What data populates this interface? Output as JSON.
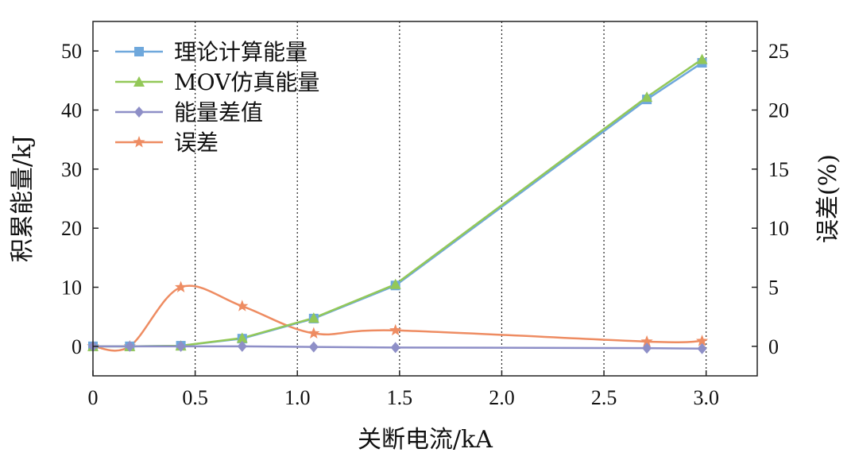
{
  "chart_data": {
    "type": "line",
    "xlabel": "关断电流/kA",
    "ylabel": "积累能量/kJ",
    "y2label": "误差(%)",
    "xlim": [
      0,
      3.25
    ],
    "ylim": [
      -5,
      55
    ],
    "y2lim": [
      -2.5,
      27.5
    ],
    "x_ticks": [
      0,
      0.5,
      1.0,
      1.5,
      2.0,
      2.5,
      3.0
    ],
    "x_tick_labels": [
      "0",
      "0.5",
      "1.0",
      "1.5",
      "2.0",
      "2.5",
      "3.0"
    ],
    "y_ticks": [
      0,
      10,
      20,
      30,
      40,
      50
    ],
    "y_tick_labels": [
      "0",
      "10",
      "20",
      "30",
      "40",
      "50"
    ],
    "y2_ticks": [
      0,
      5,
      10,
      15,
      20,
      25
    ],
    "y2_tick_labels": [
      "0",
      "5",
      "10",
      "15",
      "20",
      "25"
    ],
    "grid": "vertical dotted lines at 0.5, 1.0, 1.5, 2.0, 2.5, 3.0",
    "legend_position": "top-left",
    "series": [
      {
        "name": "理论计算能量",
        "axis": "left",
        "color": "#6fa8dc",
        "marker": "square",
        "x": [
          0.0,
          0.18,
          0.43,
          0.73,
          1.08,
          1.48,
          2.71,
          2.98
        ],
        "y": [
          0.0,
          0.0,
          0.1,
          1.3,
          4.7,
          10.3,
          41.8,
          48.0
        ]
      },
      {
        "name": "MOV仿真能量",
        "axis": "left",
        "color": "#93c858",
        "marker": "triangle",
        "x": [
          0.0,
          0.18,
          0.43,
          0.73,
          1.08,
          1.48,
          2.71,
          2.98
        ],
        "y": [
          0.0,
          0.0,
          0.1,
          1.4,
          4.8,
          10.5,
          42.2,
          48.6
        ]
      },
      {
        "name": "能量差值",
        "axis": "left",
        "color": "#8e8fc7",
        "marker": "diamond",
        "x": [
          0.0,
          0.18,
          0.43,
          0.73,
          1.08,
          1.48,
          2.71,
          2.98
        ],
        "y": [
          0.0,
          0.0,
          0.0,
          0.0,
          -0.1,
          -0.2,
          -0.3,
          -0.4
        ]
      },
      {
        "name": "误差",
        "axis": "right",
        "color": "#ee8c62",
        "marker": "star",
        "x": [
          0.0,
          0.18,
          0.43,
          0.73,
          1.08,
          1.48,
          2.71,
          2.98
        ],
        "y": [
          0.0,
          0.0,
          5.0,
          3.4,
          1.1,
          1.35,
          0.4,
          0.45
        ]
      }
    ]
  }
}
